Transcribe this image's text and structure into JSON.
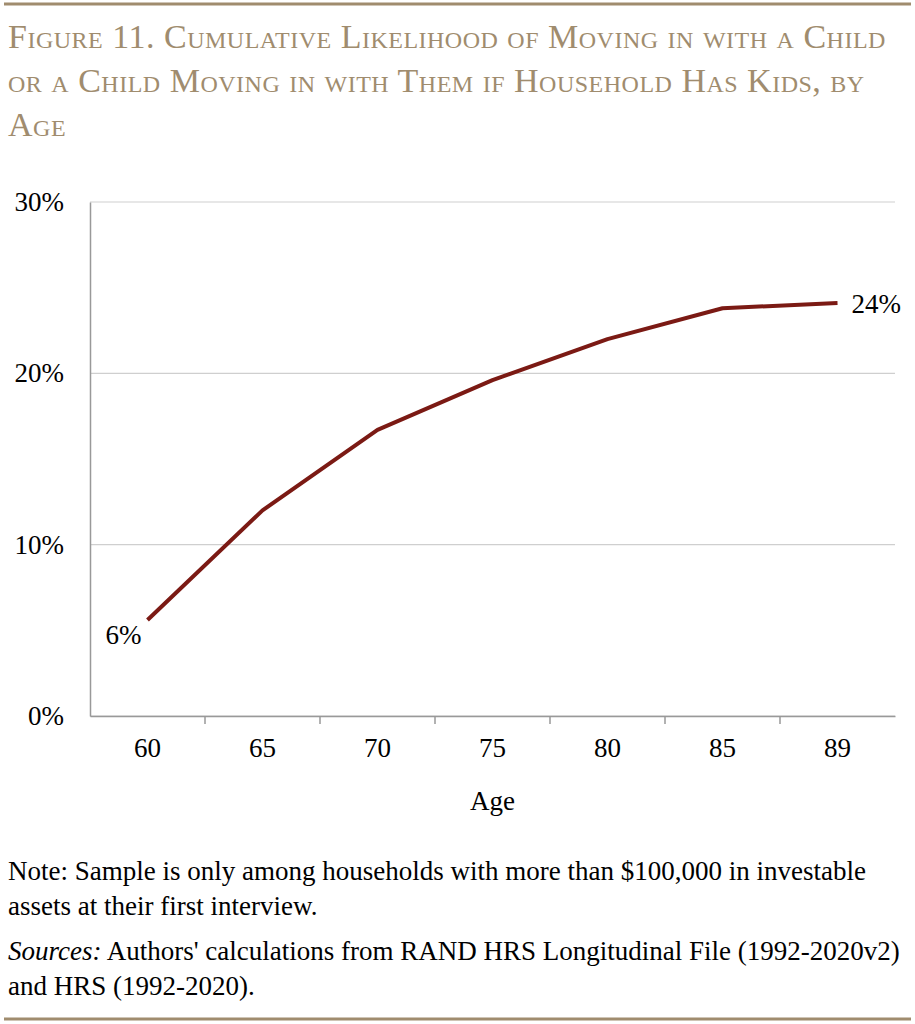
{
  "chart_data": {
    "type": "line",
    "title": "Figure 11. Cumulative Likelihood of Moving in with a Child or a Child Moving in with Them if Household Has Kids, by Age",
    "x_label": "Age",
    "categories": [
      "60",
      "65",
      "70",
      "75",
      "80",
      "85",
      "89"
    ],
    "values": [
      5.6,
      12.0,
      16.7,
      19.6,
      22.0,
      23.8,
      24.1
    ],
    "value_labels": [
      "6%",
      null,
      null,
      null,
      null,
      null,
      "24%"
    ],
    "data_labels": true,
    "color": "#7b1a14",
    "ylim": [
      0,
      30
    ],
    "yticks": [
      {
        "value": 0,
        "label": "0%"
      },
      {
        "value": 10,
        "label": "10%"
      },
      {
        "value": 20,
        "label": "20%"
      },
      {
        "value": 30,
        "label": "30%"
      }
    ],
    "grid": true,
    "note": "Note: Sample is only among households with more than $100,000 in investable assets at their first interview.",
    "source": "Sources: Authors' calculations from RAND HRS Longitudinal File (1992-2020v2) and HRS (1992-2020)."
  }
}
